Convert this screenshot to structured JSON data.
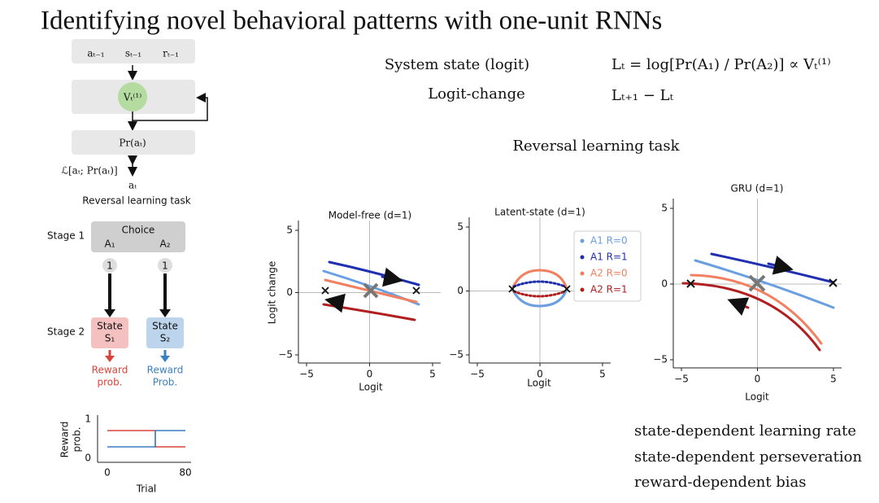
{
  "title": "Identifying novel behavioral patterns with one-unit RNNs",
  "model_diagram": {
    "inputs": [
      "aₜ₋₁",
      "sₜ₋₁",
      "rₜ₋₁"
    ],
    "hidden": "Vₜ⁽¹⁾",
    "output": "Pr(aₜ)",
    "loss": "ℒ[aₜ; Pr(aₜ)]",
    "target": "aₜ",
    "caption": "Reversal learning task"
  },
  "task_diagram": {
    "stage1": "Stage 1",
    "choice": "Choice",
    "actions": [
      "A₁",
      "A₂"
    ],
    "action_labels": [
      "1",
      "1"
    ],
    "stage2": "Stage 2",
    "states": [
      [
        "State",
        "S₁"
      ],
      [
        "State",
        "S₂"
      ]
    ],
    "rewards": [
      [
        "Reward",
        "prob."
      ],
      [
        "Reward",
        "Prob."
      ]
    ]
  },
  "reward_plot": {
    "ylabel": [
      "Reward",
      "prob."
    ],
    "yticks": [
      "1",
      "0"
    ],
    "xticks": [
      "0",
      "80"
    ],
    "xlabel": "Trial"
  },
  "definitions": [
    {
      "term": "System state (logit)",
      "formula": "Lₜ = log[Pr(A₁) / Pr(A₂)] ∝ Vₜ⁽¹⁾"
    },
    {
      "term": "Logit-change",
      "formula": "Lₜ₊₁ − Lₜ"
    }
  ],
  "task_heading": "Reversal learning task",
  "panels": [
    {
      "title": "Model-free (d=1)",
      "ylabel": "Logit change",
      "xlabel": "Logit",
      "xticks": [
        "−5",
        "0",
        "5"
      ],
      "yticks": [
        "5",
        "0",
        "−5"
      ]
    },
    {
      "title": "Latent-state (d=1)",
      "xlabel": "Logit",
      "xticks": [
        "−5",
        "0",
        "5"
      ],
      "yticks": [
        "5",
        "0",
        "−5"
      ]
    },
    {
      "title": "GRU (d=1)",
      "xlabel": "Logit",
      "xticks": [
        "−5",
        "0",
        "5"
      ],
      "yticks": [
        "5",
        "0",
        "−5"
      ]
    }
  ],
  "legend": [
    {
      "label": "A1  R=0",
      "color": "#6a9fe0"
    },
    {
      "label": "A1  R=1",
      "color": "#1f2fb0"
    },
    {
      "label": "A2  R=0",
      "color": "#f08060"
    },
    {
      "label": "A2  R=1",
      "color": "#b02020"
    }
  ],
  "bullets": [
    "state-dependent learning rate",
    "state-dependent perseveration",
    "reward-dependent bias"
  ]
}
